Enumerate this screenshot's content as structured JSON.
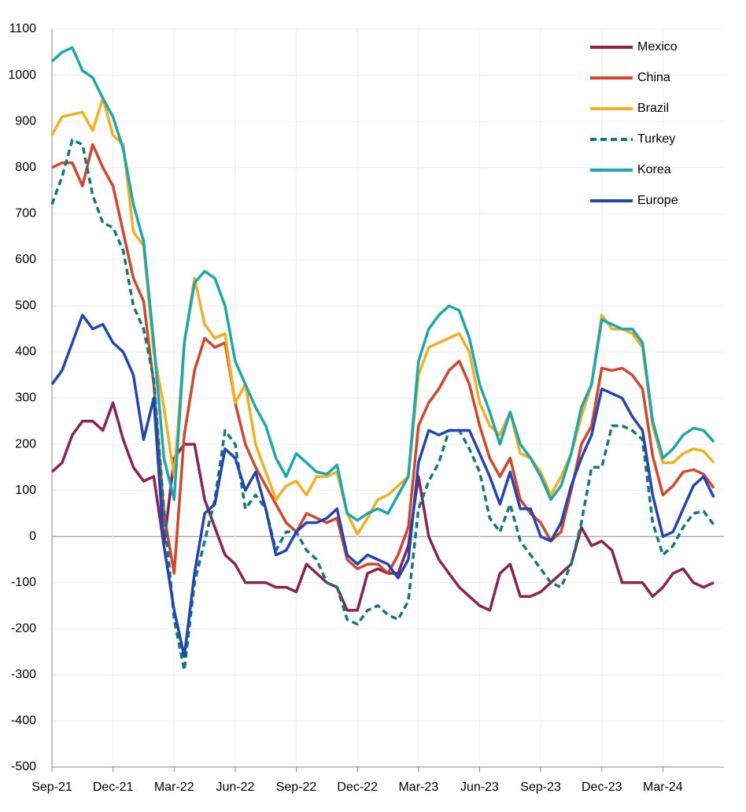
{
  "chart_data": {
    "type": "line",
    "categories": [
      "Sep-21",
      null,
      null,
      null,
      null,
      null,
      "Dec-21",
      null,
      null,
      null,
      null,
      null,
      "Mar-22",
      null,
      null,
      null,
      null,
      null,
      "Jun-22",
      null,
      null,
      null,
      null,
      null,
      "Sep-22",
      null,
      null,
      null,
      null,
      null,
      "Dec-22",
      null,
      null,
      null,
      null,
      null,
      "Mar-23",
      null,
      null,
      null,
      null,
      null,
      "Jun-23",
      null,
      null,
      null,
      null,
      null,
      "Sep-23",
      null,
      null,
      null,
      null,
      null,
      "Dec-23",
      null,
      null,
      null,
      null,
      null,
      "Mar-24",
      null,
      null,
      null,
      null,
      null,
      null
    ],
    "ylim": [
      -500,
      1100
    ],
    "yticks": [
      -500,
      -400,
      -300,
      -200,
      -100,
      0,
      100,
      200,
      300,
      400,
      500,
      600,
      700,
      800,
      900,
      1000,
      1100
    ],
    "grid": true,
    "legend": "top-right",
    "series": [
      {
        "name": "Mexico",
        "color": "#8b2252",
        "dashed": false,
        "values": [
          140,
          160,
          220,
          250,
          250,
          230,
          290,
          210,
          150,
          120,
          130,
          -20,
          170,
          200,
          200,
          80,
          20,
          -40,
          -60,
          -100,
          -100,
          -100,
          -110,
          -110,
          -120,
          -60,
          -80,
          -100,
          -110,
          -160,
          -160,
          -80,
          -70,
          -80,
          -80,
          -20,
          130,
          0,
          -50,
          -80,
          -110,
          -130,
          -150,
          -160,
          -80,
          -60,
          -130,
          -130,
          -120,
          -100,
          -80,
          -60,
          20,
          -20,
          -10,
          -30,
          -100,
          -100,
          -100,
          -130,
          -110,
          -80,
          -70,
          -100,
          -110,
          -100,
          null
        ]
      },
      {
        "name": "China",
        "color": "#d4452a",
        "dashed": false,
        "values": [
          800,
          810,
          810,
          760,
          850,
          800,
          760,
          660,
          560,
          510,
          330,
          50,
          -80,
          220,
          360,
          430,
          410,
          420,
          290,
          200,
          150,
          110,
          70,
          30,
          10,
          50,
          40,
          30,
          40,
          -50,
          -70,
          -60,
          -60,
          -80,
          -40,
          20,
          240,
          290,
          320,
          360,
          380,
          330,
          240,
          170,
          130,
          170,
          80,
          50,
          30,
          -10,
          10,
          100,
          200,
          240,
          365,
          360,
          365,
          350,
          320,
          175,
          90,
          110,
          140,
          145,
          135,
          105,
          null
        ]
      },
      {
        "name": "Brazil",
        "color": "#f2b01e",
        "dashed": false,
        "values": [
          870,
          910,
          915,
          920,
          880,
          950,
          870,
          850,
          660,
          630,
          400,
          280,
          130,
          420,
          560,
          460,
          430,
          440,
          290,
          330,
          200,
          140,
          80,
          110,
          120,
          90,
          130,
          130,
          140,
          50,
          5,
          40,
          80,
          90,
          110,
          130,
          350,
          410,
          420,
          430,
          440,
          400,
          290,
          240,
          220,
          270,
          180,
          170,
          140,
          90,
          130,
          180,
          260,
          330,
          480,
          450,
          450,
          440,
          410,
          240,
          160,
          160,
          180,
          190,
          185,
          160,
          null
        ]
      },
      {
        "name": "Turkey",
        "color": "#127a7a",
        "dashed": true,
        "values": [
          720,
          780,
          860,
          850,
          740,
          680,
          670,
          620,
          500,
          450,
          340,
          60,
          -180,
          -290,
          -100,
          -10,
          80,
          230,
          200,
          60,
          90,
          60,
          -30,
          10,
          10,
          -30,
          -50,
          -100,
          -110,
          -180,
          -190,
          -160,
          -150,
          -170,
          -180,
          -140,
          60,
          120,
          160,
          230,
          230,
          190,
          140,
          40,
          10,
          70,
          -10,
          -40,
          -70,
          -100,
          -110,
          -60,
          30,
          150,
          150,
          240,
          240,
          230,
          210,
          30,
          -40,
          -20,
          20,
          50,
          55,
          25,
          null
        ]
      },
      {
        "name": "Korea",
        "color": "#1aa7b0",
        "dashed": false,
        "values": [
          1030,
          1050,
          1060,
          1010,
          995,
          950,
          910,
          840,
          720,
          640,
          420,
          170,
          80,
          420,
          550,
          575,
          560,
          500,
          380,
          330,
          280,
          240,
          170,
          130,
          180,
          160,
          140,
          135,
          155,
          50,
          35,
          50,
          60,
          50,
          90,
          130,
          380,
          450,
          480,
          500,
          490,
          430,
          330,
          270,
          200,
          270,
          200,
          170,
          130,
          80,
          110,
          180,
          280,
          330,
          470,
          460,
          450,
          450,
          420,
          250,
          170,
          190,
          220,
          235,
          230,
          205,
          null
        ]
      },
      {
        "name": "Europe",
        "color": "#2145b8",
        "dashed": false,
        "values": [
          330,
          360,
          420,
          480,
          450,
          460,
          420,
          400,
          350,
          210,
          300,
          -20,
          -160,
          -260,
          -80,
          50,
          70,
          190,
          170,
          100,
          140,
          60,
          -40,
          -30,
          10,
          30,
          30,
          40,
          60,
          -40,
          -60,
          -40,
          -50,
          -60,
          -90,
          -50,
          160,
          230,
          220,
          230,
          230,
          230,
          180,
          130,
          70,
          140,
          60,
          60,
          0,
          -10,
          30,
          110,
          170,
          220,
          320,
          310,
          300,
          260,
          230,
          90,
          0,
          10,
          60,
          110,
          130,
          85,
          null
        ]
      }
    ]
  }
}
